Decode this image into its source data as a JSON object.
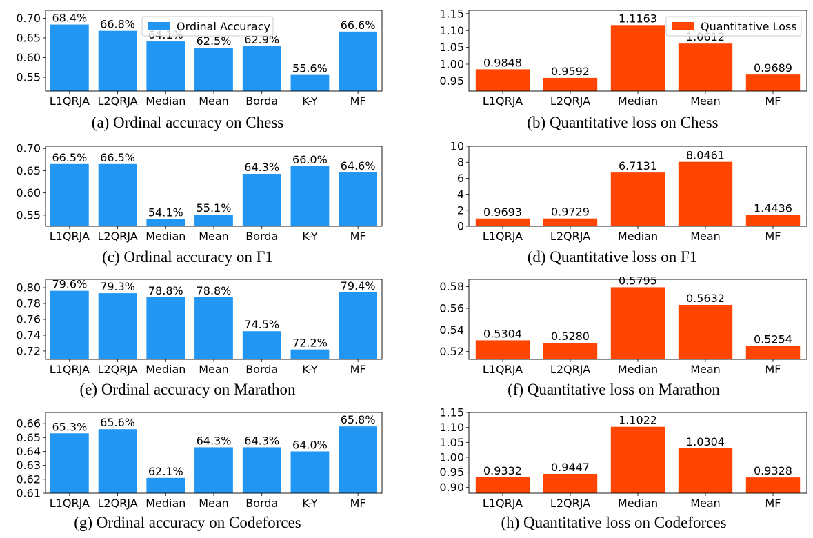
{
  "figure": {
    "legend_ordinal": "Ordinal Accuracy",
    "legend_quantitative": "Quantitative Loss",
    "colors": {
      "ordinal": "#2196F3",
      "quantitative": "#FF4500"
    }
  },
  "chart_data": [
    {
      "id": "a",
      "type": "bar",
      "caption": "(a) Ordinal accuracy on Chess",
      "categories": [
        "L1QRJA",
        "L2QRJA",
        "Median",
        "Mean",
        "Borda",
        "K-Y",
        "MF"
      ],
      "series": [
        {
          "name": "Ordinal Accuracy",
          "values": [
            0.684,
            0.668,
            0.641,
            0.625,
            0.629,
            0.556,
            0.666
          ]
        }
      ],
      "data_labels": [
        "68.4%",
        "66.8%",
        "64.1%",
        "62.5%",
        "62.9%",
        "55.6%",
        "66.6%"
      ],
      "ylim": [
        0.515,
        0.72
      ],
      "yticks": [
        0.55,
        0.6,
        0.65,
        0.7
      ],
      "ytick_labels": [
        "0.55",
        "0.60",
        "0.65",
        "0.70"
      ],
      "legend": "upper-center",
      "grid": false
    },
    {
      "id": "b",
      "type": "bar",
      "caption": "(b) Quantitative loss on Chess",
      "categories": [
        "L1QRJA",
        "L2QRJA",
        "Median",
        "Mean",
        "MF"
      ],
      "series": [
        {
          "name": "Quantitative Loss",
          "values": [
            0.9848,
            0.9592,
            1.1163,
            1.0612,
            0.9689
          ]
        }
      ],
      "data_labels": [
        "0.9848",
        "0.9592",
        "1.1163",
        "1.0612",
        "0.9689"
      ],
      "ylim": [
        0.92,
        1.16
      ],
      "yticks": [
        0.95,
        1.0,
        1.05,
        1.1,
        1.15
      ],
      "ytick_labels": [
        "0.95",
        "1.00",
        "1.05",
        "1.10",
        "1.15"
      ],
      "legend": "upper-right",
      "grid": false
    },
    {
      "id": "c",
      "type": "bar",
      "caption": "(c) Ordinal accuracy on F1",
      "categories": [
        "L1QRJA",
        "L2QRJA",
        "Median",
        "Mean",
        "Borda",
        "K-Y",
        "MF"
      ],
      "series": [
        {
          "name": "Ordinal Accuracy",
          "values": [
            0.665,
            0.665,
            0.541,
            0.551,
            0.643,
            0.66,
            0.646
          ]
        }
      ],
      "data_labels": [
        "66.5%",
        "66.5%",
        "54.1%",
        "55.1%",
        "64.3%",
        "66.0%",
        "64.6%"
      ],
      "ylim": [
        0.525,
        0.705
      ],
      "yticks": [
        0.55,
        0.6,
        0.65,
        0.7
      ],
      "ytick_labels": [
        "0.55",
        "0.60",
        "0.65",
        "0.70"
      ],
      "grid": false
    },
    {
      "id": "d",
      "type": "bar",
      "caption": "(d) Quantitative loss on F1",
      "categories": [
        "L1QRJA",
        "L2QRJA",
        "Median",
        "Mean",
        "MF"
      ],
      "series": [
        {
          "name": "Quantitative Loss",
          "values": [
            0.9693,
            0.9729,
            6.7131,
            8.0461,
            1.4436
          ]
        }
      ],
      "data_labels": [
        "0.9693",
        "0.9729",
        "6.7131",
        "8.0461",
        "1.4436"
      ],
      "ylim": [
        0,
        10
      ],
      "yticks": [
        0,
        2,
        4,
        6,
        8,
        10
      ],
      "ytick_labels": [
        "0",
        "2",
        "4",
        "6",
        "8",
        "10"
      ],
      "grid": false
    },
    {
      "id": "e",
      "type": "bar",
      "caption": "(e) Ordinal accuracy on Marathon",
      "categories": [
        "L1QRJA",
        "L2QRJA",
        "Median",
        "Mean",
        "Borda",
        "K-Y",
        "MF"
      ],
      "series": [
        {
          "name": "Ordinal Accuracy",
          "values": [
            0.796,
            0.793,
            0.788,
            0.788,
            0.745,
            0.722,
            0.794
          ]
        }
      ],
      "data_labels": [
        "79.6%",
        "79.3%",
        "78.8%",
        "78.8%",
        "74.5%",
        "72.2%",
        "79.4%"
      ],
      "ylim": [
        0.7095,
        0.8105
      ],
      "yticks": [
        0.72,
        0.74,
        0.76,
        0.78,
        0.8
      ],
      "ytick_labels": [
        "0.72",
        "0.74",
        "0.76",
        "0.78",
        "0.80"
      ],
      "grid": false
    },
    {
      "id": "f",
      "type": "bar",
      "caption": "(f) Quantitative loss on Marathon",
      "categories": [
        "L1QRJA",
        "L2QRJA",
        "Median",
        "Mean",
        "MF"
      ],
      "series": [
        {
          "name": "Quantitative Loss",
          "values": [
            0.5304,
            0.528,
            0.5795,
            0.5632,
            0.5254
          ]
        }
      ],
      "data_labels": [
        "0.5304",
        "0.5280",
        "0.5795",
        "0.5632",
        "0.5254"
      ],
      "ylim": [
        0.5128,
        0.5868
      ],
      "yticks": [
        0.52,
        0.54,
        0.56,
        0.58
      ],
      "ytick_labels": [
        "0.52",
        "0.54",
        "0.56",
        "0.58"
      ],
      "grid": false
    },
    {
      "id": "g",
      "type": "bar",
      "caption": "(g) Ordinal accuracy on Codeforces",
      "categories": [
        "L1QRJA",
        "L2QRJA",
        "Median",
        "Mean",
        "Borda",
        "K-Y",
        "MF"
      ],
      "series": [
        {
          "name": "Ordinal Accuracy",
          "values": [
            0.653,
            0.656,
            0.621,
            0.643,
            0.643,
            0.64,
            0.658
          ]
        }
      ],
      "data_labels": [
        "65.3%",
        "65.6%",
        "62.1%",
        "64.3%",
        "64.3%",
        "64.0%",
        "65.8%"
      ],
      "ylim": [
        0.61,
        0.668
      ],
      "yticks": [
        0.61,
        0.62,
        0.63,
        0.64,
        0.65,
        0.66
      ],
      "ytick_labels": [
        "0.61",
        "0.62",
        "0.63",
        "0.64",
        "0.65",
        "0.66"
      ],
      "grid": false
    },
    {
      "id": "h",
      "type": "bar",
      "caption": "(h) Quantitative loss on Codeforces",
      "categories": [
        "L1QRJA",
        "L2QRJA",
        "Median",
        "Mean",
        "MF"
      ],
      "series": [
        {
          "name": "Quantitative Loss",
          "values": [
            0.9332,
            0.9447,
            1.1022,
            1.0304,
            0.9328
          ]
        }
      ],
      "data_labels": [
        "0.9332",
        "0.9447",
        "1.1022",
        "1.0304",
        "0.9328"
      ],
      "ylim": [
        0.88,
        1.15
      ],
      "yticks": [
        0.9,
        0.95,
        1.0,
        1.05,
        1.1,
        1.15
      ],
      "ytick_labels": [
        "0.90",
        "0.95",
        "1.00",
        "1.05",
        "1.10",
        "1.15"
      ],
      "grid": false
    }
  ]
}
